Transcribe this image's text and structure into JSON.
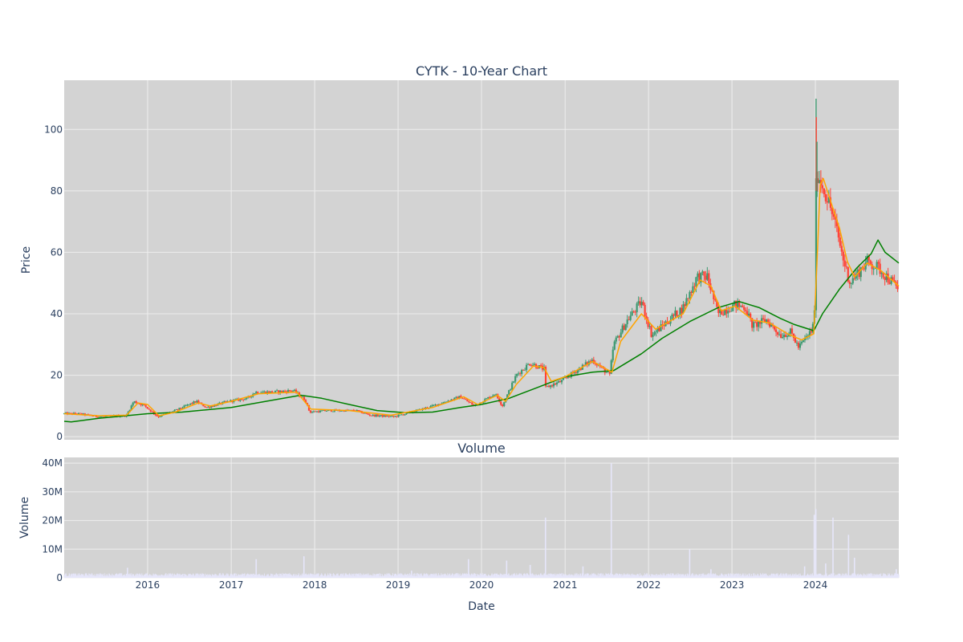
{
  "chart_data": [
    {
      "type": "candlestick",
      "title": "CYTK - 10-Year Chart",
      "ylabel": "Price",
      "ylim": [
        -1,
        116
      ],
      "y_ticks": [
        0,
        20,
        40,
        60,
        80,
        100
      ],
      "xlim": [
        "2015-01-01",
        "2024-12-31"
      ],
      "grid": true,
      "plot_background": "#d3d3d3",
      "up_color": "#3d9970",
      "down_color": "#ff4136",
      "price_anchors": [
        [
          "2015-01-01",
          7.5
        ],
        [
          "2015-03-01",
          7.5
        ],
        [
          "2015-06-01",
          6.5
        ],
        [
          "2015-09-15",
          6.8
        ],
        [
          "2015-10-01",
          7.0
        ],
        [
          "2015-11-01",
          11.5
        ],
        [
          "2015-12-20",
          10.0
        ],
        [
          "2016-02-15",
          6.5
        ],
        [
          "2016-04-15",
          8.0
        ],
        [
          "2016-08-01",
          11.5
        ],
        [
          "2016-09-15",
          9.5
        ],
        [
          "2016-12-20",
          11.5
        ],
        [
          "2017-03-15",
          12.5
        ],
        [
          "2017-04-15",
          14.5
        ],
        [
          "2017-07-01",
          14.5
        ],
        [
          "2017-10-01",
          15.0
        ],
        [
          "2017-11-20",
          12.0
        ],
        [
          "2017-12-10",
          8.0
        ],
        [
          "2018-03-01",
          8.5
        ],
        [
          "2018-07-01",
          8.5
        ],
        [
          "2018-09-01",
          7.0
        ],
        [
          "2018-12-15",
          6.5
        ],
        [
          "2019-03-01",
          8.0
        ],
        [
          "2019-06-01",
          10.0
        ],
        [
          "2019-10-01",
          13.0
        ],
        [
          "2019-12-01",
          10.0
        ],
        [
          "2020-03-01",
          14.0
        ],
        [
          "2020-04-01",
          10.0
        ],
        [
          "2020-06-01",
          20.0
        ],
        [
          "2020-08-01",
          24.0
        ],
        [
          "2020-10-01",
          22.0
        ],
        [
          "2020-10-08",
          16.0
        ],
        [
          "2020-12-15",
          18.0
        ],
        [
          "2021-03-01",
          22.0
        ],
        [
          "2021-05-01",
          25.0
        ],
        [
          "2021-07-15",
          20.0
        ],
        [
          "2021-08-01",
          30.0
        ],
        [
          "2021-10-01",
          38.0
        ],
        [
          "2021-12-01",
          44.0
        ],
        [
          "2022-01-15",
          33.0
        ],
        [
          "2022-04-01",
          38.0
        ],
        [
          "2022-06-01",
          42.0
        ],
        [
          "2022-08-01",
          52.0
        ],
        [
          "2022-09-15",
          52.0
        ],
        [
          "2022-11-01",
          40.0
        ],
        [
          "2023-01-15",
          43.0
        ],
        [
          "2023-03-01",
          42.0
        ],
        [
          "2023-04-01",
          36.0
        ],
        [
          "2023-06-01",
          38.0
        ],
        [
          "2023-08-01",
          33.0
        ],
        [
          "2023-09-15",
          34.0
        ],
        [
          "2023-10-20",
          29.0
        ],
        [
          "2023-12-20",
          35.0
        ],
        [
          "2023-12-28",
          42.0
        ],
        [
          "2024-01-03",
          80.0
        ],
        [
          "2024-01-08",
          86.0
        ],
        [
          "2024-01-20",
          84.0
        ],
        [
          "2024-03-01",
          76.0
        ],
        [
          "2024-04-01",
          68.0
        ],
        [
          "2024-05-01",
          58.0
        ],
        [
          "2024-06-01",
          50.0
        ],
        [
          "2024-07-01",
          53.0
        ],
        [
          "2024-08-15",
          57.0
        ],
        [
          "2024-10-01",
          55.0
        ],
        [
          "2024-12-31",
          48.0
        ]
      ],
      "ma_short": [
        [
          "2015-01-01",
          7.5
        ],
        [
          "2015-06-01",
          6.8
        ],
        [
          "2015-10-01",
          7.0
        ],
        [
          "2015-11-20",
          11.0
        ],
        [
          "2016-01-01",
          10.5
        ],
        [
          "2016-02-20",
          6.8
        ],
        [
          "2016-05-01",
          8.0
        ],
        [
          "2016-08-10",
          11.0
        ],
        [
          "2016-10-01",
          10.0
        ],
        [
          "2017-01-01",
          11.5
        ],
        [
          "2017-05-01",
          14.0
        ],
        [
          "2017-10-15",
          14.5
        ],
        [
          "2017-12-15",
          9.0
        ],
        [
          "2018-06-01",
          8.5
        ],
        [
          "2018-12-01",
          7.0
        ],
        [
          "2019-06-01",
          9.5
        ],
        [
          "2019-10-15",
          13.0
        ],
        [
          "2019-12-15",
          10.5
        ],
        [
          "2020-03-10",
          13.5
        ],
        [
          "2020-04-15",
          11.5
        ],
        [
          "2020-06-01",
          17.0
        ],
        [
          "2020-08-15",
          23.0
        ],
        [
          "2020-10-01",
          22.5
        ],
        [
          "2020-11-01",
          18.0
        ],
        [
          "2021-01-01",
          19.5
        ],
        [
          "2021-05-01",
          24.5
        ],
        [
          "2021-07-25",
          21.0
        ],
        [
          "2021-09-01",
          31.0
        ],
        [
          "2021-12-01",
          40.0
        ],
        [
          "2022-02-01",
          35.0
        ],
        [
          "2022-06-01",
          40.0
        ],
        [
          "2022-08-15",
          51.0
        ],
        [
          "2022-10-01",
          49.0
        ],
        [
          "2022-11-15",
          41.0
        ],
        [
          "2023-01-15",
          42.5
        ],
        [
          "2023-04-01",
          38.0
        ],
        [
          "2023-06-15",
          37.0
        ],
        [
          "2023-09-01",
          33.5
        ],
        [
          "2023-11-01",
          31.5
        ],
        [
          "2023-12-25",
          33.5
        ],
        [
          "2024-01-10",
          60.0
        ],
        [
          "2024-01-22",
          82.0
        ],
        [
          "2024-02-05",
          84.0
        ],
        [
          "2024-03-15",
          75.0
        ],
        [
          "2024-04-15",
          68.0
        ],
        [
          "2024-05-20",
          57.0
        ],
        [
          "2024-06-20",
          52.0
        ],
        [
          "2024-08-15",
          56.5
        ],
        [
          "2024-10-15",
          54.0
        ],
        [
          "2024-12-31",
          49.0
        ]
      ],
      "ma_long": [
        [
          "2015-01-01",
          5.0
        ],
        [
          "2015-02-01",
          4.8
        ],
        [
          "2015-06-01",
          6.0
        ],
        [
          "2016-01-01",
          7.5
        ],
        [
          "2016-06-01",
          8.0
        ],
        [
          "2017-01-01",
          9.5
        ],
        [
          "2017-06-01",
          11.5
        ],
        [
          "2017-11-01",
          13.5
        ],
        [
          "2018-02-01",
          12.5
        ],
        [
          "2018-06-01",
          10.5
        ],
        [
          "2018-10-01",
          8.5
        ],
        [
          "2019-02-01",
          7.8
        ],
        [
          "2019-06-01",
          8.0
        ],
        [
          "2019-10-01",
          9.5
        ],
        [
          "2020-01-01",
          10.5
        ],
        [
          "2020-05-01",
          12.5
        ],
        [
          "2020-09-01",
          16.0
        ],
        [
          "2021-01-01",
          19.5
        ],
        [
          "2021-05-01",
          21.0
        ],
        [
          "2021-08-01",
          21.5
        ],
        [
          "2021-12-01",
          27.0
        ],
        [
          "2022-03-01",
          32.0
        ],
        [
          "2022-07-01",
          37.5
        ],
        [
          "2022-11-01",
          42.0
        ],
        [
          "2023-02-01",
          44.0
        ],
        [
          "2023-05-01",
          42.0
        ],
        [
          "2023-08-01",
          38.5
        ],
        [
          "2023-10-01",
          36.5
        ],
        [
          "2023-12-25",
          34.5
        ],
        [
          "2024-02-01",
          40.0
        ],
        [
          "2024-04-15",
          48.0
        ],
        [
          "2024-07-01",
          55.0
        ],
        [
          "2024-09-01",
          59.5
        ],
        [
          "2024-10-01",
          64.0
        ],
        [
          "2024-11-01",
          60.0
        ],
        [
          "2024-12-31",
          56.5
        ]
      ],
      "ma_short_color": "#ffa500",
      "ma_long_color": "#008000"
    },
    {
      "type": "bar",
      "title": "Volume",
      "xlabel": "Date",
      "ylabel": "Volume",
      "ylim": [
        0,
        42000000
      ],
      "y_ticks": [
        0,
        10000000,
        20000000,
        30000000,
        40000000
      ],
      "y_tick_labels": [
        "0",
        "10M",
        "20M",
        "30M",
        "40M"
      ],
      "x_tick_labels": [
        "2016",
        "2017",
        "2018",
        "2019",
        "2020",
        "2021",
        "2022",
        "2023",
        "2024"
      ],
      "bar_color": "#e6e6fa",
      "baseline_volume_millions": 0.9,
      "spikes": [
        [
          "2015-10-05",
          3.5
        ],
        [
          "2017-04-20",
          6.5
        ],
        [
          "2017-11-15",
          7.5
        ],
        [
          "2019-03-01",
          2.5
        ],
        [
          "2019-11-05",
          6.5
        ],
        [
          "2020-04-20",
          6.0
        ],
        [
          "2020-08-01",
          4.5
        ],
        [
          "2020-10-07",
          21.0
        ],
        [
          "2021-03-20",
          4.0
        ],
        [
          "2021-07-22",
          40.0
        ],
        [
          "2022-06-30",
          10.0
        ],
        [
          "2022-10-01",
          3.0
        ],
        [
          "2023-11-15",
          4.0
        ],
        [
          "2023-12-27",
          22.0
        ],
        [
          "2024-01-03",
          24.0
        ],
        [
          "2024-02-15",
          5.0
        ],
        [
          "2024-03-18",
          21.0
        ],
        [
          "2024-05-25",
          15.0
        ],
        [
          "2024-06-20",
          7.0
        ],
        [
          "2024-12-20",
          3.0
        ]
      ]
    }
  ]
}
